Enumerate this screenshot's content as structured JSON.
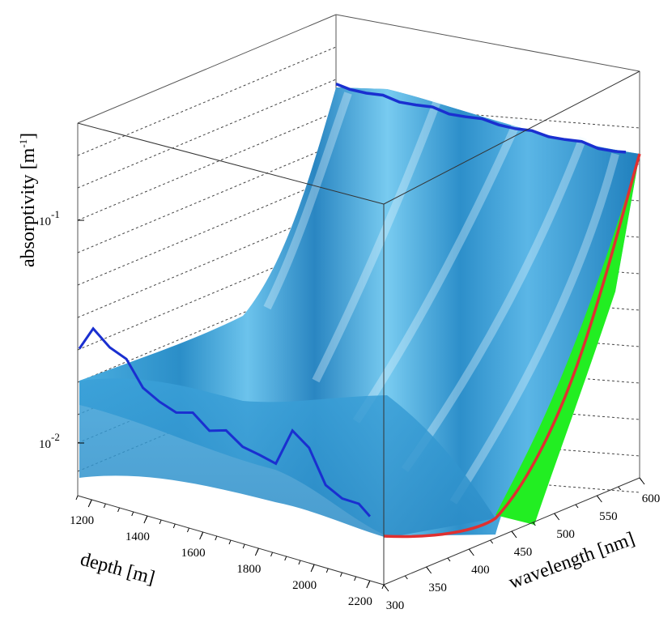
{
  "chart_data": {
    "type": "surface3d",
    "x_axis": {
      "label": "depth [m]",
      "ticks": [
        1200,
        1400,
        1600,
        1800,
        2000,
        2200
      ],
      "range": [
        1150,
        2250
      ]
    },
    "y_axis": {
      "label": "wavelength [nm]",
      "ticks": [
        300,
        350,
        400,
        450,
        500,
        550,
        600
      ],
      "range": [
        300,
        600
      ]
    },
    "z_axis": {
      "label_base": "absorptivity [m",
      "label_exp": "-1",
      "label_close": "]",
      "scale": "log",
      "tick_labels": [
        {
          "base": "10",
          "exp": "-2",
          "value": 0.01
        },
        {
          "base": "10",
          "exp": "-1",
          "value": 0.1
        }
      ]
    },
    "surface": {
      "depth": [
        1150,
        1200,
        1260,
        1320,
        1380,
        1440,
        1500,
        1560,
        1620,
        1680,
        1740,
        1800,
        1860,
        1920,
        1980,
        2040,
        2100,
        2160,
        2200
      ],
      "absorptivity_at_300nm": [
        0.012,
        0.018,
        0.015,
        0.014,
        0.01,
        0.009,
        0.0085,
        0.0095,
        0.008,
        0.009,
        0.0078,
        0.0077,
        0.0075,
        0.014,
        0.012,
        0.0075,
        0.0068,
        0.007,
        0.0062
      ],
      "absorptivity_at_600nm": [
        0.22,
        0.22,
        0.21,
        0.21,
        0.2,
        0.2,
        0.2,
        0.19,
        0.19,
        0.19,
        0.19,
        0.18,
        0.18,
        0.18,
        0.18,
        0.18,
        0.17,
        0.17,
        0.17
      ]
    },
    "edge_colors": {
      "surface": "#2b8ec8",
      "depth_profile_line": "#1a2fd0",
      "wavelength_curve": "#e03030",
      "side_fill": "#22ee22"
    },
    "grid": true
  }
}
